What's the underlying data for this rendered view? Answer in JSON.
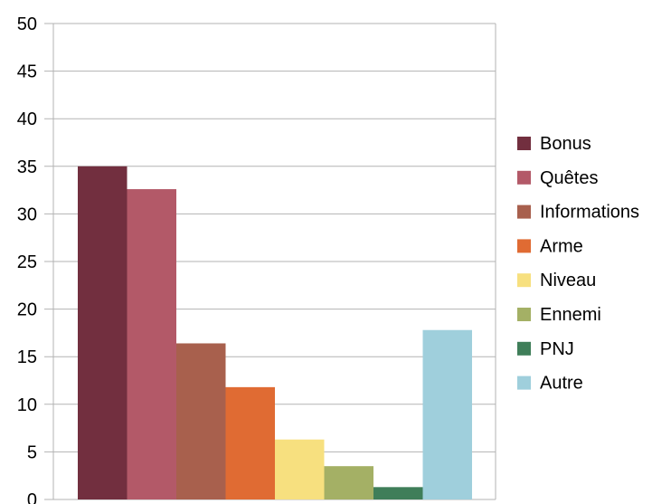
{
  "chart_data": {
    "type": "bar",
    "title": "",
    "xlabel": "",
    "ylabel": "",
    "ylim": [
      0,
      50
    ],
    "yticks": [
      0,
      5,
      10,
      15,
      20,
      25,
      30,
      35,
      40,
      45,
      50
    ],
    "grid": true,
    "legend_position": "right",
    "categories": [
      "Bonus",
      "Quêtes",
      "Informations",
      "Arme",
      "Niveau",
      "Ennemi",
      "PNJ",
      "Autre"
    ],
    "values": [
      35,
      32.6,
      16.4,
      11.8,
      6.3,
      3.5,
      1.3,
      17.8
    ],
    "colors": [
      "#722f3f",
      "#b35968",
      "#a8604d",
      "#e06b33",
      "#f7e07f",
      "#a4b065",
      "#3f7e59",
      "#9fcfdc"
    ]
  }
}
